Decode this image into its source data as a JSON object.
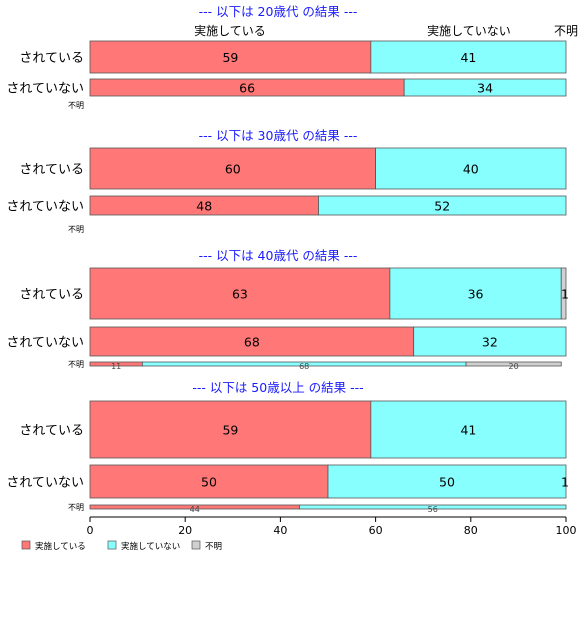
{
  "chart_data": {
    "type": "bar",
    "orientation": "horizontal",
    "stacked": true,
    "xlim": [
      0,
      100
    ],
    "x_ticks": [
      "0",
      "20",
      "40",
      "60",
      "80",
      "100"
    ],
    "column_labels": [
      "実施している",
      "実施していない",
      "不明"
    ],
    "colors": {
      "実施している": "#ff7777",
      "実施していない": "#88ffff",
      "不明": "#d0d0d0"
    },
    "legend": {
      "position": "bottom-left",
      "entries": [
        "実施している",
        "実施していない",
        "不明"
      ]
    },
    "panels": [
      {
        "title": "--- 以下は 20歳代 の結果 ---",
        "rows": [
          {
            "label": "されている",
            "values": [
              59,
              41,
              0
            ],
            "value_labels": [
              "59",
              "41",
              ""
            ]
          },
          {
            "label": "されていない",
            "values": [
              66,
              34,
              0
            ],
            "value_labels": [
              "66",
              "34",
              ""
            ]
          },
          {
            "label": "不明",
            "values": [
              0,
              0,
              0
            ],
            "value_labels": [
              "",
              "",
              ""
            ]
          }
        ]
      },
      {
        "title": "--- 以下は 30歳代 の結果 ---",
        "rows": [
          {
            "label": "されている",
            "values": [
              60,
              40,
              0
            ],
            "value_labels": [
              "60",
              "40",
              ""
            ]
          },
          {
            "label": "されていない",
            "values": [
              48,
              52,
              0
            ],
            "value_labels": [
              "48",
              "52",
              ""
            ]
          },
          {
            "label": "不明",
            "values": [
              0,
              0,
              0
            ],
            "value_labels": [
              "",
              "",
              ""
            ]
          }
        ]
      },
      {
        "title": "--- 以下は 40歳代 の結果 ---",
        "rows": [
          {
            "label": "されている",
            "values": [
              63,
              36,
              1
            ],
            "value_labels": [
              "63",
              "36",
              "1"
            ]
          },
          {
            "label": "されていない",
            "values": [
              68,
              32,
              0
            ],
            "value_labels": [
              "68",
              "32",
              ""
            ]
          },
          {
            "label": "不明",
            "values": [
              11,
              68,
              20
            ],
            "value_labels": [
              "11",
              "68",
              "20"
            ]
          }
        ]
      },
      {
        "title": "--- 以下は 50歳以上 の結果 ---",
        "rows": [
          {
            "label": "されている",
            "values": [
              59,
              41,
              0
            ],
            "value_labels": [
              "59",
              "41",
              ""
            ]
          },
          {
            "label": "されていない",
            "values": [
              50,
              50,
              1
            ],
            "value_labels": [
              "50",
              "50",
              "1"
            ]
          },
          {
            "label": "不明",
            "values": [
              44,
              56,
              0
            ],
            "value_labels": [
              "44",
              "56",
              ""
            ]
          }
        ]
      }
    ]
  }
}
